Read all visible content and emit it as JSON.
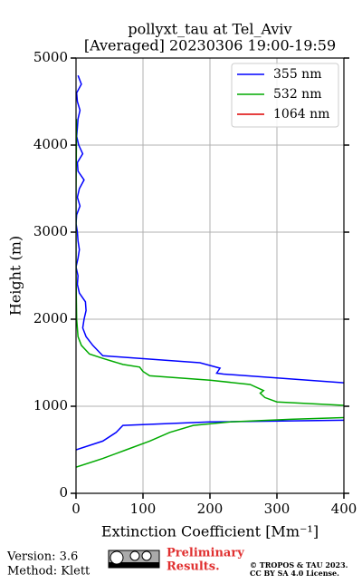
{
  "chart_data": {
    "type": "profile",
    "title": "pollyxt_tau at Tel_Aviv",
    "subtitle": "[Averaged] 20230306 19:00-19:59",
    "xlabel": "Extinction Coefficient [Mm⁻¹]",
    "ylabel": "Height (m)",
    "xlim": [
      0,
      400
    ],
    "xticks": [
      0,
      100,
      200,
      300,
      400
    ],
    "ylim": [
      0,
      5000
    ],
    "yticks": [
      0,
      1000,
      2000,
      3000,
      4000,
      5000
    ],
    "grid": true,
    "legend": "upper right",
    "series": [
      {
        "name": "355 nm",
        "color": "#0000ff",
        "y": [
          500,
          600,
          700,
          780,
          820,
          840,
          1000,
          1270,
          1370,
          1380,
          1437,
          1500,
          1580,
          1620,
          1700,
          1800,
          1900,
          2000,
          2100,
          2200,
          2300,
          2400,
          2500,
          2600,
          2700,
          2800,
          2900,
          3000,
          3100,
          3200,
          3300,
          3400,
          3500,
          3600,
          3700,
          3800,
          3900,
          4000,
          4100,
          4200,
          4300,
          4400,
          4500,
          4600,
          4700,
          4800
        ],
        "values": [
          0,
          40,
          60,
          70,
          200,
          400,
          null,
          400,
          220,
          210,
          215,
          185,
          40,
          35,
          25,
          15,
          10,
          12,
          15,
          14,
          5,
          2,
          3,
          0,
          3,
          5,
          3,
          2,
          0,
          1,
          6,
          2,
          5,
          12,
          3,
          2,
          10,
          4,
          1,
          2,
          3,
          6,
          2,
          1,
          8,
          3
        ]
      },
      {
        "name": "532 nm",
        "color": "#00aa00",
        "y": [
          300,
          400,
          500,
          600,
          700,
          780,
          820,
          850,
          870,
          950,
          1010,
          1050,
          1100,
          1150,
          1180,
          1250,
          1300,
          1350,
          1400,
          1450,
          1480,
          1550,
          1600,
          1700,
          1800,
          2000,
          2200,
          2500,
          3000,
          3500,
          4000,
          4300
        ],
        "values": [
          0,
          40,
          75,
          110,
          140,
          175,
          230,
          320,
          400,
          null,
          400,
          300,
          282,
          275,
          280,
          260,
          200,
          110,
          100,
          95,
          70,
          40,
          20,
          8,
          3,
          1,
          0.5,
          0,
          0,
          0,
          0.5,
          0.5
        ]
      },
      {
        "name": "1064 nm",
        "color": "#dd0000",
        "y": [],
        "values": []
      }
    ],
    "footer": {
      "version": "Version: 3.6",
      "method": "Method: Klett",
      "status": "Preliminary Results.",
      "copyright": "© TROPOS & TAU 2023.",
      "license": "CC BY SA 4.0 License."
    }
  }
}
